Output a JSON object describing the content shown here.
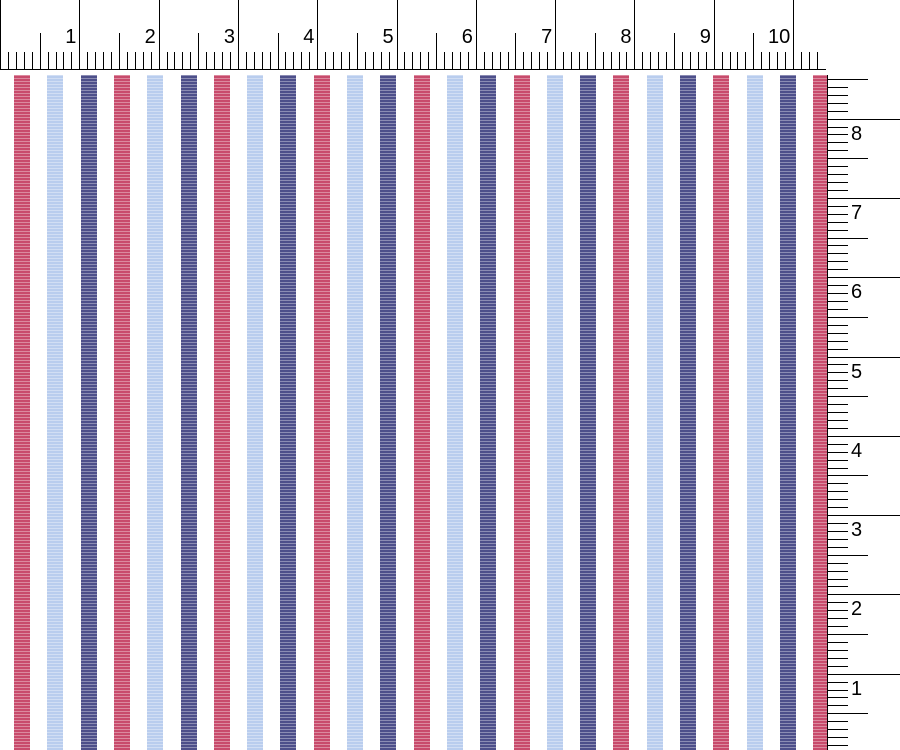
{
  "top_ruler": {
    "labels": [
      "1",
      "2",
      "3",
      "4",
      "5",
      "6",
      "7",
      "8",
      "9",
      "10"
    ]
  },
  "right_ruler": {
    "labels": [
      "1",
      "2",
      "3",
      "4",
      "5",
      "6",
      "7",
      "8"
    ]
  },
  "fabric": {
    "pattern": [
      "red",
      "light-blue",
      "navy"
    ],
    "colors": {
      "red": "#c84b6c",
      "light-blue": "#b9cdee",
      "navy": "#4d4f8a",
      "background": "#ffffff"
    },
    "stripe_count": 25
  }
}
